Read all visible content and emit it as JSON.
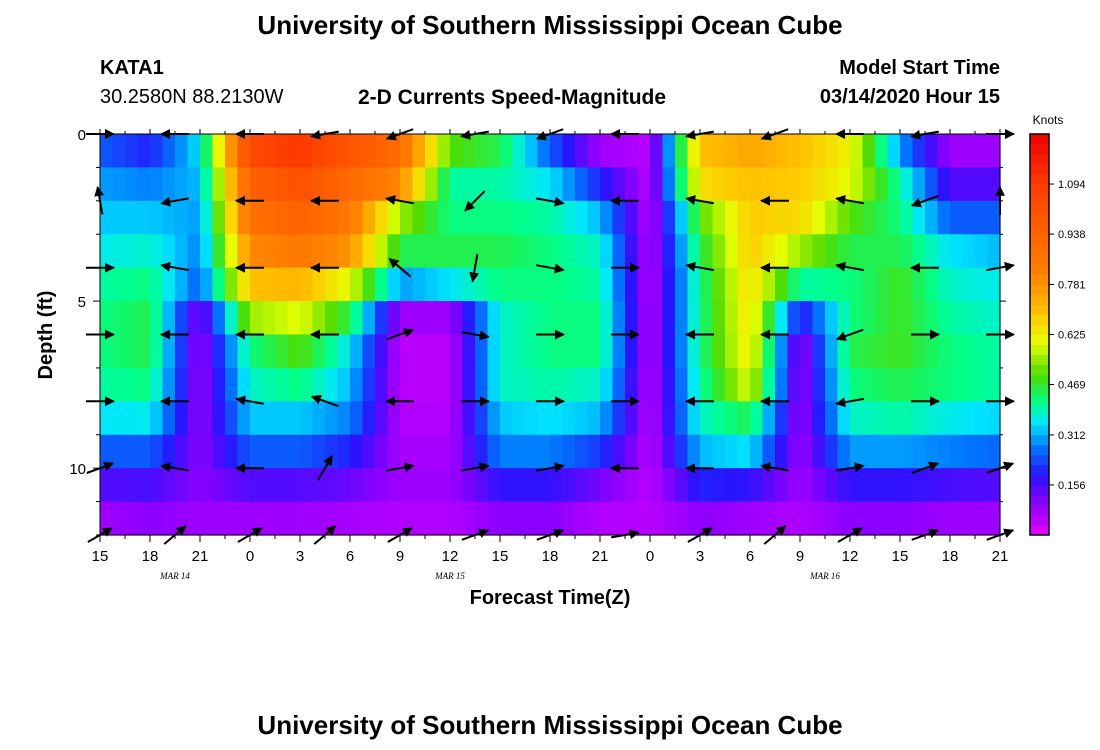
{
  "page": {
    "title_top": "University of Southern Mississippi Ocean Cube",
    "title_bottom": "University of Southern Mississippi Ocean Cube",
    "station": "KATA1",
    "location": "30.2580N 88.2130W",
    "plot_title": "2-D Currents Speed-Magnitude",
    "model_label": "Model Start Time",
    "model_time": "03/14/2020 Hour 15"
  },
  "chart_data": {
    "type": "heatmap",
    "title": "2-D Currents Speed-Magnitude",
    "xlabel": "Forecast Time(Z)",
    "ylabel": "Depth (ft)",
    "x_hours": [
      0,
      3,
      6,
      9,
      12,
      15,
      18,
      21,
      24,
      27,
      30,
      33,
      36,
      39,
      42,
      45,
      48,
      51,
      54
    ],
    "x_tick_labels": [
      "15",
      "18",
      "21",
      "0",
      "3",
      "6",
      "9",
      "12",
      "15",
      "18",
      "21",
      "0",
      "3",
      "6",
      "9",
      "12",
      "15",
      "18",
      "21"
    ],
    "date_labels": [
      {
        "text": "MAR 14",
        "hour": 4.5
      },
      {
        "text": "MAR 15",
        "hour": 21
      },
      {
        "text": "MAR 16",
        "hour": 43.5
      }
    ],
    "y_ticks": [
      0,
      5,
      10
    ],
    "ylim": [
      0,
      12
    ],
    "colorbar": {
      "unit": "Knots",
      "range": [
        0,
        1.25
      ],
      "tick_values": [
        0.156,
        0.312,
        0.469,
        0.625,
        0.781,
        0.938,
        1.094
      ],
      "tick_labels": [
        "0.156",
        "0.312",
        "0.469",
        "0.625",
        "0.781",
        "0.938",
        "1.094"
      ]
    },
    "depths_ft": [
      0.5,
      1.5,
      2.5,
      3.5,
      4.5,
      5.5,
      6.5,
      7.5,
      8.5,
      9.5,
      10.5,
      11.5
    ],
    "columns": [
      {
        "hour": 0,
        "speeds": [
          0.25,
          0.3,
          0.33,
          0.36,
          0.4,
          0.42,
          0.42,
          0.4,
          0.35,
          0.25,
          0.15,
          0.08
        ]
      },
      {
        "hour": 3,
        "speeds": [
          0.2,
          0.28,
          0.33,
          0.38,
          0.42,
          0.45,
          0.45,
          0.42,
          0.36,
          0.25,
          0.16,
          0.1
        ]
      },
      {
        "hour": 6,
        "speeds": [
          0.35,
          0.32,
          0.3,
          0.28,
          0.25,
          0.1,
          0.08,
          0.08,
          0.09,
          0.1,
          0.1,
          0.08
        ]
      },
      {
        "hour": 9,
        "speeds": [
          1.05,
          0.95,
          0.88,
          0.8,
          0.7,
          0.55,
          0.42,
          0.38,
          0.33,
          0.25,
          0.15,
          0.08
        ]
      },
      {
        "hour": 12,
        "speeds": [
          1.1,
          1.02,
          0.95,
          0.85,
          0.72,
          0.6,
          0.5,
          0.42,
          0.33,
          0.25,
          0.15,
          0.08
        ]
      },
      {
        "hour": 15,
        "speeds": [
          1.0,
          0.92,
          0.85,
          0.78,
          0.6,
          0.45,
          0.35,
          0.32,
          0.28,
          0.2,
          0.13,
          0.07
        ]
      },
      {
        "hour": 18,
        "speeds": [
          0.9,
          0.8,
          0.55,
          0.45,
          0.3,
          0.08,
          0.05,
          0.05,
          0.06,
          0.07,
          0.08,
          0.06
        ]
      },
      {
        "hour": 21,
        "speeds": [
          0.5,
          0.4,
          0.42,
          0.45,
          0.35,
          0.08,
          0.05,
          0.05,
          0.06,
          0.07,
          0.08,
          0.06
        ]
      },
      {
        "hour": 24,
        "speeds": [
          0.45,
          0.4,
          0.42,
          0.45,
          0.42,
          0.38,
          0.38,
          0.38,
          0.33,
          0.28,
          0.18,
          0.1
        ]
      },
      {
        "hour": 27,
        "speeds": [
          0.25,
          0.35,
          0.4,
          0.42,
          0.42,
          0.42,
          0.42,
          0.4,
          0.35,
          0.28,
          0.18,
          0.1
        ]
      },
      {
        "hour": 30,
        "speeds": [
          0.08,
          0.2,
          0.32,
          0.38,
          0.4,
          0.42,
          0.42,
          0.38,
          0.32,
          0.22,
          0.12,
          0.06
        ]
      },
      {
        "hour": 33,
        "speeds": [
          0.05,
          0.05,
          0.05,
          0.05,
          0.05,
          0.05,
          0.05,
          0.05,
          0.05,
          0.05,
          0.05,
          0.05
        ]
      },
      {
        "hour": 36,
        "speeds": [
          0.7,
          0.65,
          0.5,
          0.45,
          0.42,
          0.42,
          0.42,
          0.4,
          0.38,
          0.32,
          0.2,
          0.1
        ]
      },
      {
        "hour": 39,
        "speeds": [
          0.75,
          0.7,
          0.68,
          0.68,
          0.66,
          0.65,
          0.64,
          0.6,
          0.45,
          0.35,
          0.18,
          0.08
        ]
      },
      {
        "hour": 42,
        "speeds": [
          0.7,
          0.68,
          0.66,
          0.55,
          0.4,
          0.18,
          0.08,
          0.08,
          0.08,
          0.08,
          0.08,
          0.06
        ]
      },
      {
        "hour": 45,
        "speeds": [
          0.62,
          0.6,
          0.5,
          0.45,
          0.42,
          0.42,
          0.45,
          0.42,
          0.38,
          0.3,
          0.18,
          0.1
        ]
      },
      {
        "hour": 48,
        "speeds": [
          0.3,
          0.4,
          0.42,
          0.45,
          0.48,
          0.48,
          0.48,
          0.45,
          0.4,
          0.3,
          0.18,
          0.1
        ]
      },
      {
        "hour": 51,
        "speeds": [
          0.08,
          0.15,
          0.25,
          0.35,
          0.38,
          0.4,
          0.42,
          0.42,
          0.36,
          0.28,
          0.16,
          0.08
        ]
      },
      {
        "hour": 54,
        "speeds": [
          0.08,
          0.15,
          0.25,
          0.32,
          0.36,
          0.38,
          0.4,
          0.4,
          0.34,
          0.26,
          0.15,
          0.08
        ]
      }
    ],
    "arrow_depths_ft": [
      0,
      2,
      4,
      6,
      8,
      10,
      12
    ],
    "arrow_hours": [
      0,
      4.5,
      9,
      13.5,
      18,
      22.5,
      27,
      31.5,
      36,
      40.5,
      45,
      49.5,
      54
    ],
    "arrow_dirs_deg": [
      [
        0,
        180,
        180,
        190,
        200,
        190,
        200,
        180,
        190,
        200,
        180,
        190,
        0
      ],
      [
        100,
        190,
        180,
        180,
        170,
        225,
        350,
        180,
        170,
        180,
        170,
        200,
        90
      ],
      [
        0,
        170,
        180,
        180,
        140,
        260,
        350,
        0,
        170,
        180,
        170,
        180,
        10
      ],
      [
        0,
        180,
        180,
        180,
        20,
        350,
        0,
        0,
        180,
        180,
        200,
        0,
        0
      ],
      [
        0,
        180,
        170,
        160,
        180,
        0,
        0,
        0,
        180,
        180,
        190,
        0,
        0
      ],
      [
        20,
        170,
        180,
        60,
        10,
        10,
        10,
        180,
        180,
        170,
        10,
        20,
        20
      ],
      [
        30,
        40,
        30,
        40,
        30,
        20,
        20,
        10,
        30,
        40,
        30,
        20,
        20
      ]
    ]
  }
}
